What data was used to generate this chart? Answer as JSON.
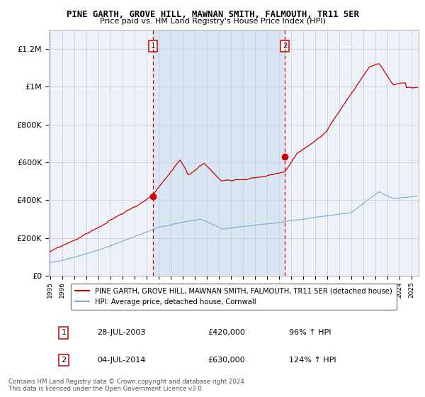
{
  "title": "PINE GARTH, GROVE HILL, MAWNAN SMITH, FALMOUTH, TR11 5ER",
  "subtitle": "Price paid vs. HM Land Registry's House Price Index (HPI)",
  "legend_label_red": "PINE GARTH, GROVE HILL, MAWNAN SMITH, FALMOUTH, TR11 5ER (detached house)",
  "legend_label_blue": "HPI: Average price, detached house, Cornwall",
  "annotation1_label": "1",
  "annotation1_date": "28-JUL-2003",
  "annotation1_price": "£420,000",
  "annotation1_hpi": "96% ↑ HPI",
  "annotation2_label": "2",
  "annotation2_date": "04-JUL-2014",
  "annotation2_price": "£630,000",
  "annotation2_hpi": "124% ↑ HPI",
  "footer1": "Contains HM Land Registry data © Crown copyright and database right 2024.",
  "footer2": "This data is licensed under the Open Government Licence v3.0.",
  "background_color": "#ffffff",
  "plot_bg_color": "#eef2f8",
  "shade_color": "#d8e6f3",
  "red_color": "#cc0000",
  "blue_color": "#7aa8d2",
  "grid_color": "#c8d0dc",
  "yticks": [
    0,
    200000,
    400000,
    600000,
    800000,
    1000000,
    1200000
  ],
  "ylabels": [
    "£0",
    "£200K",
    "£400K",
    "£600K",
    "£800K",
    "£1M",
    "£1.2M"
  ],
  "ylim_max": 1300000,
  "x_start_year": 1995,
  "x_end_year": 2025,
  "sale1_year": 2003.55,
  "sale1_value": 420000,
  "sale2_year": 2014.5,
  "sale2_value": 630000,
  "vline1_year": 2003.55,
  "vline2_year": 2014.5
}
